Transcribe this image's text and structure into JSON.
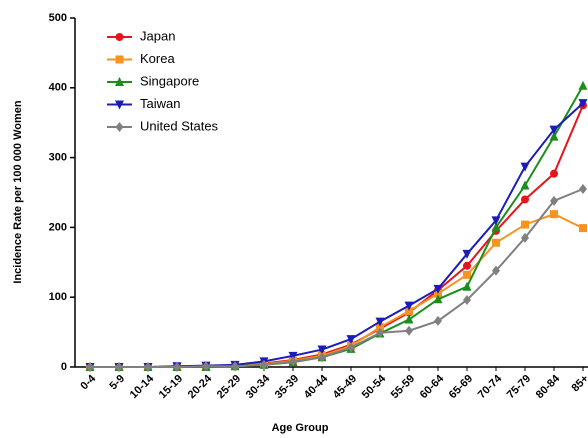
{
  "chart_data": {
    "type": "line",
    "xlabel": "Age Group",
    "ylabel": "Incidence Rate per 100 000 Women",
    "categories": [
      "0-4",
      "5-9",
      "10-14",
      "15-19",
      "20-24",
      "25-29",
      "30-34",
      "35-39",
      "40-44",
      "45-49",
      "50-54",
      "55-59",
      "60-64",
      "65-69",
      "70-74",
      "75-79",
      "80-84",
      "85+"
    ],
    "series": [
      {
        "name": "Japan",
        "color": "#e8141b",
        "marker": "circle",
        "values": [
          0,
          0,
          0,
          0,
          1,
          2,
          5,
          10,
          18,
          32,
          55,
          78,
          110,
          145,
          195,
          240,
          277,
          375
        ]
      },
      {
        "name": "Korea",
        "color": "#f7931e",
        "marker": "square",
        "values": [
          0,
          0,
          0,
          0,
          1,
          2,
          4,
          9,
          16,
          30,
          57,
          80,
          105,
          132,
          178,
          204,
          219,
          199
        ]
      },
      {
        "name": "Singapore",
        "color": "#1a8f1a",
        "marker": "triangle-up",
        "values": [
          0,
          0,
          0,
          0,
          0,
          1,
          3,
          7,
          14,
          26,
          48,
          68,
          97,
          115,
          200,
          260,
          330,
          403
        ]
      },
      {
        "name": "Taiwan",
        "color": "#1c1cb8",
        "marker": "triangle-down",
        "values": [
          0,
          0,
          0,
          1,
          2,
          3,
          8,
          16,
          25,
          40,
          65,
          88,
          112,
          162,
          210,
          287,
          340,
          378
        ]
      },
      {
        "name": "United States",
        "color": "#808080",
        "marker": "diamond",
        "values": [
          0,
          0,
          0,
          0,
          1,
          1,
          3,
          8,
          14,
          28,
          49,
          52,
          66,
          96,
          138,
          185,
          238,
          255
        ]
      }
    ],
    "ylim": [
      0,
      500
    ],
    "yticks": [
      0,
      100,
      200,
      300,
      400,
      500
    ],
    "legend": "upper-left"
  }
}
